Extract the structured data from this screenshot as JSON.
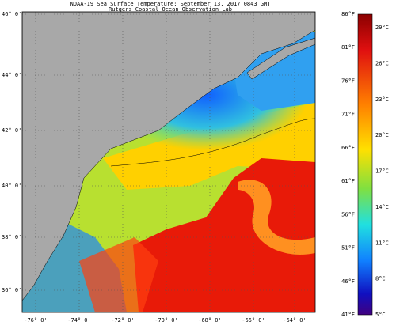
{
  "header": {
    "title": "NOAA-19 Sea Surface Temperature:  September 13, 2017 0843 GMT",
    "subtitle": "Rutgers Coastal Ocean Observation Lab"
  },
  "map": {
    "lat_labels": [
      "46° 0'",
      "44° 0'",
      "42° 0'",
      "40° 0'",
      "38° 0'",
      "36° 0'"
    ],
    "lon_labels": [
      "-76° 0'",
      "-74° 0'",
      "-72° 0'",
      "-70° 0'",
      "-68° 0'",
      "-66° 0'",
      "-64° 0'"
    ]
  },
  "colorbar": {
    "fahrenheit": [
      "86°F",
      "81°F",
      "76°F",
      "71°F",
      "66°F",
      "61°F",
      "56°F",
      "51°F",
      "46°F",
      "41°F"
    ],
    "celsius": [
      "29°C",
      "26°C",
      "23°C",
      "20°C",
      "17°C",
      "14°C",
      "11°C",
      "8°C",
      "5°C"
    ]
  }
}
